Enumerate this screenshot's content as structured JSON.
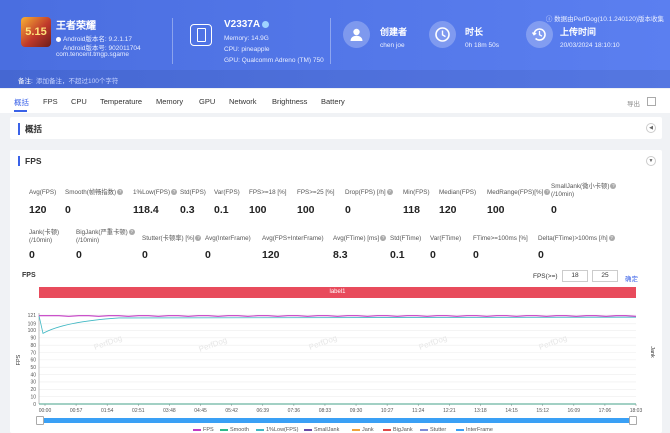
{
  "app": {
    "name": "王者荣耀",
    "android_version": "Android版本名: 9.2.1.17",
    "android_code": "Android版本号: 902011704",
    "package": "com.tencent.tmgp.sgame",
    "icon_glyph": "5.15"
  },
  "device": {
    "name": "V2337A",
    "memory": "Memory: 14.9G",
    "cpu": "CPU: pineapple",
    "gpu": "GPU: Qualcomm Adreno (TM) 750"
  },
  "creator": {
    "title": "创建者",
    "value": "chen joe"
  },
  "duration": {
    "title": "时长",
    "value": "0h 18m 50s"
  },
  "upload": {
    "title": "上传时间",
    "value": "20/03/2024 18:10:10"
  },
  "version_text": "数据由PerfDog(10.1.240120)版本收集",
  "note": {
    "label": "备注:",
    "placeholder": "添加备注，不超过100个字符"
  },
  "tabs": [
    "概括",
    "FPS",
    "CPU",
    "Temperature",
    "Memory",
    "GPU",
    "Network",
    "Brightness",
    "Battery"
  ],
  "export_label": "导出",
  "overview": {
    "title": "概括"
  },
  "fps_panel": {
    "title": "FPS",
    "stats_row1": [
      {
        "label": "Avg(FPS)",
        "value": "120"
      },
      {
        "label": "Smooth(帧畅指数)",
        "value": "0",
        "q": true
      },
      {
        "label": "1%Low(FPS)",
        "value": "118.4",
        "q": true
      },
      {
        "label": "Std(FPS)",
        "value": "0.3"
      },
      {
        "label": "Var(FPS)",
        "value": "0.1"
      },
      {
        "label": "FPS>=18 [%]",
        "value": "100"
      },
      {
        "label": "FPS>=25 [%]",
        "value": "100"
      },
      {
        "label": "Drop(FPS) [/h]",
        "value": "0",
        "q": true
      },
      {
        "label": "Min(FPS)",
        "value": "118"
      },
      {
        "label": "Median(FPS)",
        "value": "120"
      },
      {
        "label": "MedRange(FPS)[%]",
        "value": "100",
        "q": true
      },
      {
        "label": "SmallJank(微小卡顿)",
        "label2": "(/10min)",
        "value": "0",
        "q": true
      }
    ],
    "stats_row2": [
      {
        "label": "Jank(卡顿)",
        "label2": "(/10min)",
        "value": "0"
      },
      {
        "label": "BigJank(严重卡顿)",
        "label2": "(/10min)",
        "value": "0",
        "q": true
      },
      {
        "label": "Stutter(卡顿率) [%]",
        "value": "0",
        "q": true
      },
      {
        "label": "Avg(InterFrame)",
        "value": "0"
      },
      {
        "label": "Avg(FPS+InterFrame)",
        "value": "120"
      },
      {
        "label": "Avg(FTime) [ms]",
        "value": "8.3",
        "q": true
      },
      {
        "label": "Std(FTime)",
        "value": "0.1"
      },
      {
        "label": "Var(FTime)",
        "value": "0"
      },
      {
        "label": "FTime>=100ms [%]",
        "value": "0"
      },
      {
        "label": "Delta(FTime)>100ms [/h]",
        "value": "0",
        "q": true
      }
    ]
  },
  "chart_controls": {
    "label": "FPS(>=)",
    "v1": "18",
    "v2": "25",
    "confirm": "确定"
  },
  "chart_data": {
    "type": "line",
    "title": "FPS",
    "ylabel": "FPS",
    "y2label": "Jank",
    "label_bar": "label1",
    "y_ticks": [
      0,
      10,
      20,
      30,
      40,
      50,
      60,
      70,
      80,
      90,
      100,
      109,
      121
    ],
    "x_ticks": [
      "00:00",
      "00:57",
      "01:54",
      "02:51",
      "03:48",
      "04:45",
      "05:42",
      "06:39",
      "07:36",
      "08:33",
      "09:30",
      "10:27",
      "11:24",
      "12:21",
      "13:18",
      "14:15",
      "15:12",
      "16:09",
      "17:06",
      "18:03"
    ],
    "ylim": [
      0,
      121
    ],
    "series": [
      {
        "name": "FPS",
        "color": "#c33bc3",
        "level": 120
      },
      {
        "name": "Smooth",
        "color": "#2fb98a",
        "level": 0
      },
      {
        "name": "1%Low(FPS)",
        "color": "#41b8c4",
        "level": 118
      },
      {
        "name": "SmallJank",
        "color": "#6a4ca5",
        "level": 0
      },
      {
        "name": "Jank",
        "color": "#f0a23b",
        "level": 0
      },
      {
        "name": "BigJank",
        "color": "#e04848",
        "level": 0
      },
      {
        "name": "Stutter",
        "color": "#7d8bd6",
        "level": 0
      },
      {
        "name": "InterFrame",
        "color": "#3aa0f5",
        "level": 0
      }
    ],
    "watermark": "PerfDog"
  }
}
